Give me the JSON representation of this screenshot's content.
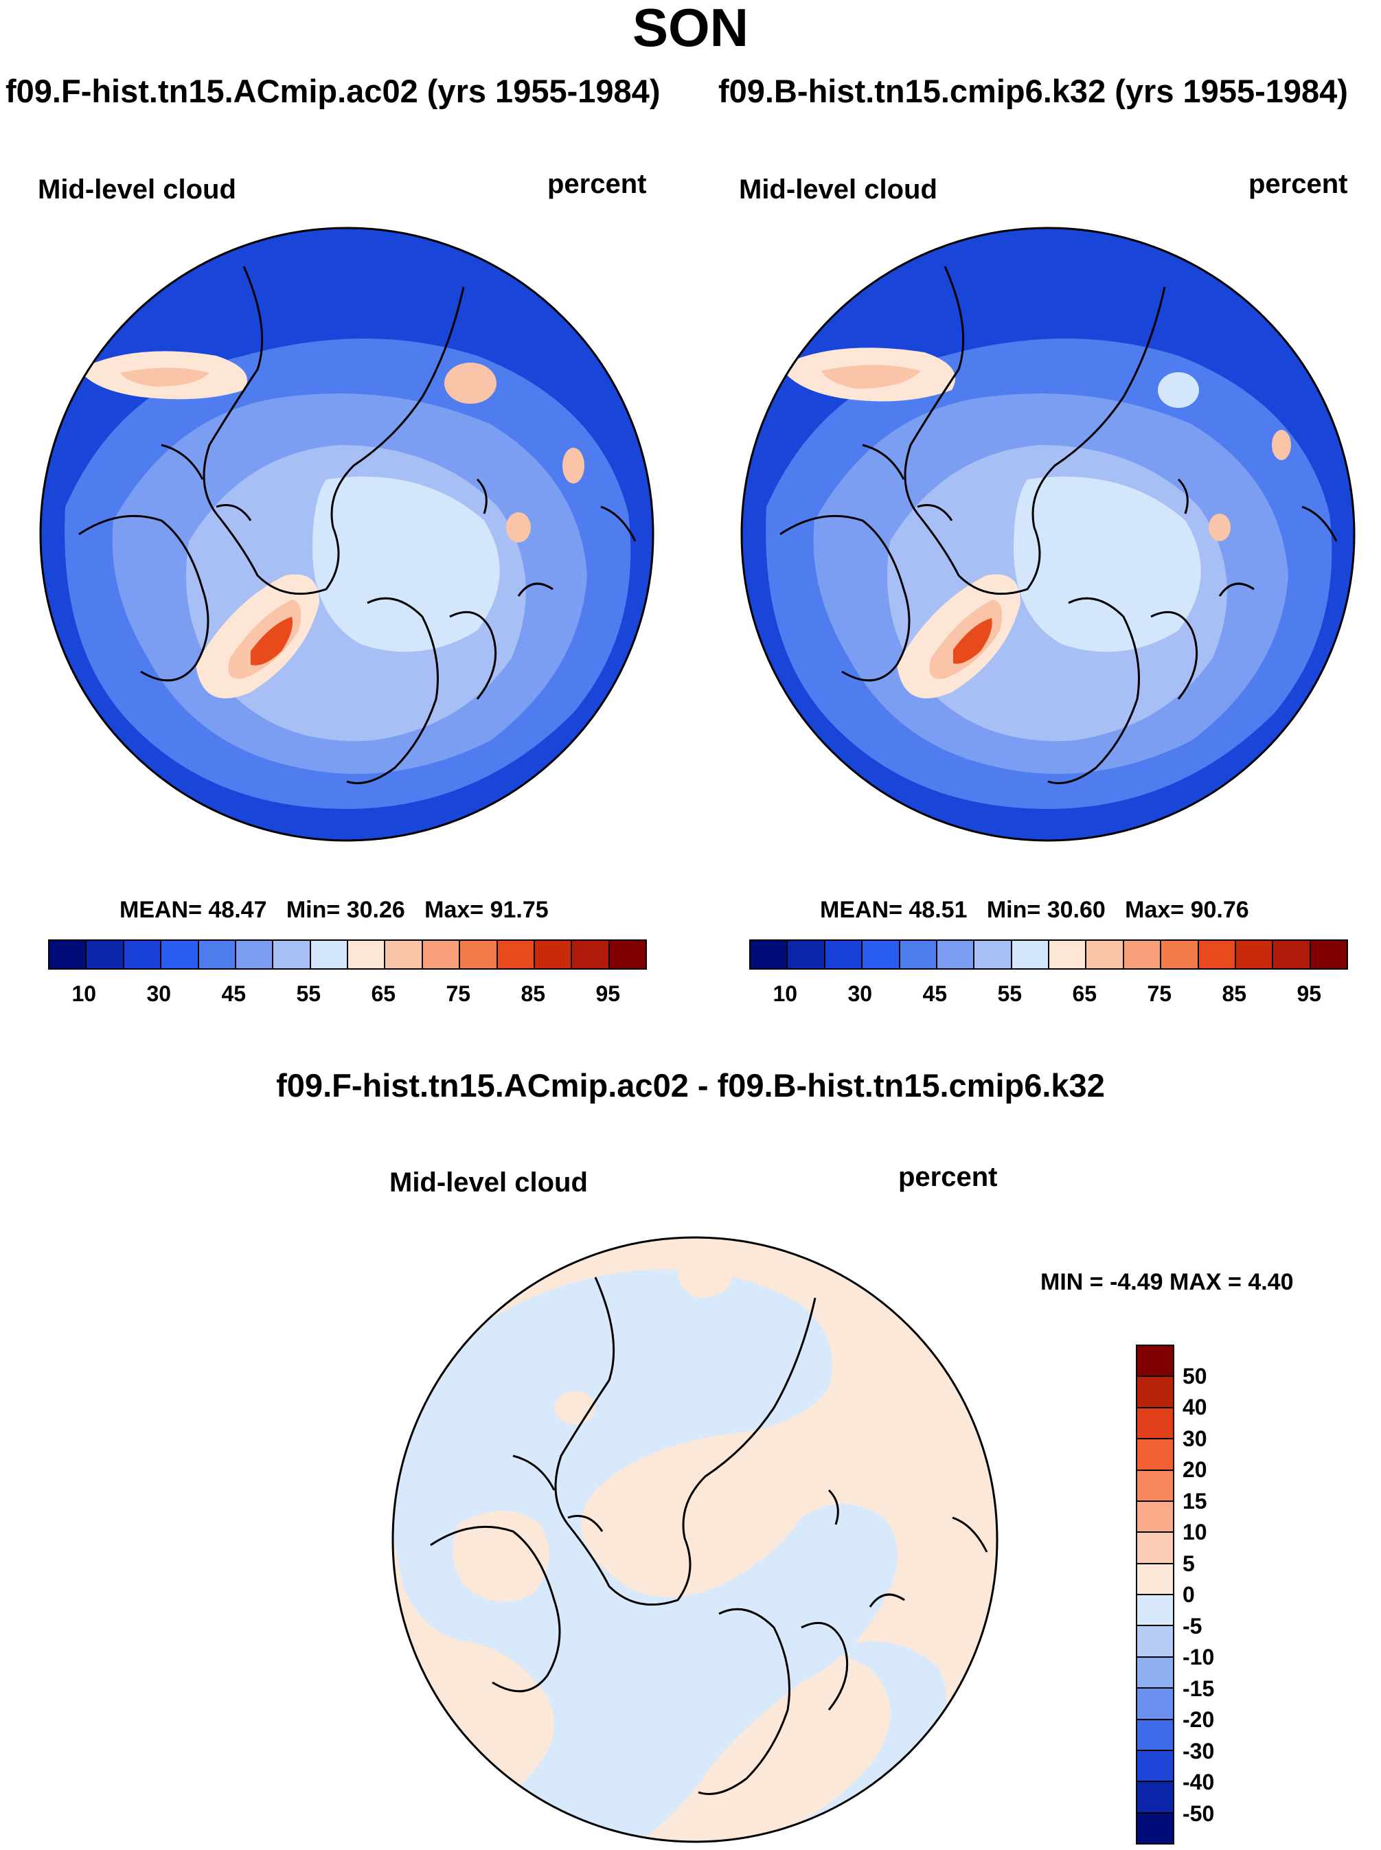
{
  "figure": {
    "title": "SON",
    "panel_left": {
      "case": "f09.F-hist.tn15.ACmip.ac02 (yrs 1955-1984)",
      "variable": "Mid-level cloud",
      "units": "percent",
      "stats": {
        "mean_label": "MEAN=",
        "mean": "48.47",
        "min_label": "Min=",
        "min": "30.26",
        "max_label": "Max=",
        "max": "91.75"
      }
    },
    "panel_right": {
      "case": "f09.B-hist.tn15.cmip6.k32 (yrs 1955-1984)",
      "variable": "Mid-level cloud",
      "units": "percent",
      "stats": {
        "mean_label": "MEAN=",
        "mean": "48.51",
        "min_label": "Min=",
        "min": "30.60",
        "max_label": "Max=",
        "max": "90.76"
      }
    },
    "panel_diff": {
      "case": "f09.F-hist.tn15.ACmip.ac02 - f09.B-hist.tn15.cmip6.k32",
      "variable": "Mid-level cloud",
      "units": "percent",
      "stats_text": "MIN =  -4.49 MAX =   4.40"
    }
  },
  "colorbar_main": {
    "colors": [
      "#000d78",
      "#0b25a8",
      "#1940d8",
      "#2a5df0",
      "#4f7df0",
      "#7b9ef2",
      "#a7bff5",
      "#d3e6fb",
      "#fde6d6",
      "#f9c4a8",
      "#f7a07a",
      "#f47a4a",
      "#e84a1c",
      "#c82a0a",
      "#b01a0a",
      "#800000"
    ],
    "labels": [
      "10",
      "30",
      "45",
      "55",
      "65",
      "75",
      "85",
      "95"
    ]
  },
  "colorbar_diff": {
    "colors": [
      "#800000",
      "#b82208",
      "#e2401a",
      "#f26032",
      "#f7875c",
      "#f9ab8a",
      "#fcccb4",
      "#fbe8d8",
      "#d8e9fb",
      "#b5cdf5",
      "#8eaff2",
      "#6a90f0",
      "#3f6ae8",
      "#1f46d8",
      "#0b25a8",
      "#000d78"
    ],
    "labels": [
      "50",
      "40",
      "30",
      "20",
      "15",
      "10",
      "5",
      "0",
      "-5",
      "-10",
      "-15",
      "-20",
      "-30",
      "-40",
      "-50"
    ]
  },
  "map_colors": {
    "deep": "#1a45d9",
    "mid": "#4f7df0",
    "light": "#7b9ef2",
    "pale": "#a7bff5",
    "palest": "#d3e6fb",
    "warm1": "#fde6d6",
    "warm2": "#f9c4a8",
    "warm3": "#f47a4a",
    "warm4": "#d8300c",
    "diff_neg": "#d8e9fb",
    "diff_pos": "#fbe8d8"
  }
}
